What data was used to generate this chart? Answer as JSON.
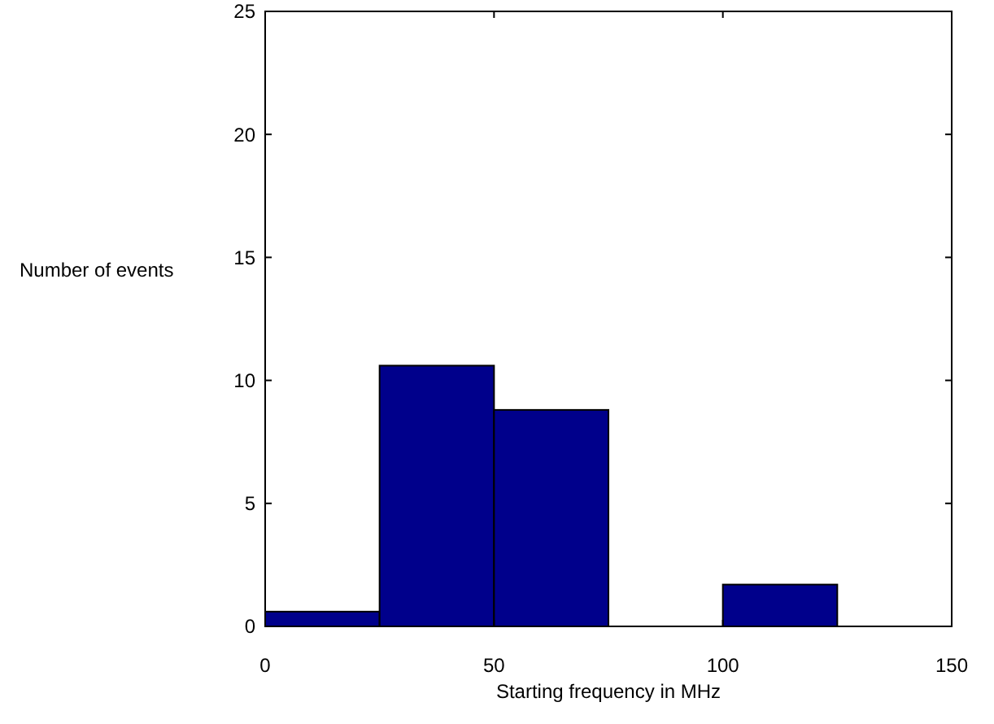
{
  "chart_data": {
    "type": "histogram",
    "xlabel": "Starting frequency in MHz",
    "ylabel": "Number of events",
    "bins": [
      0,
      25,
      50,
      75,
      100,
      125,
      150
    ],
    "values": [
      0.6,
      10.6,
      8.8,
      0,
      1.7,
      0
    ],
    "color": "#00008b",
    "xlim": [
      0,
      150
    ],
    "xticks": [
      0,
      50,
      100,
      150
    ],
    "ylim": [
      0,
      25
    ],
    "yticks": [
      0,
      5,
      10,
      15,
      20,
      25
    ],
    "grid": false
  }
}
